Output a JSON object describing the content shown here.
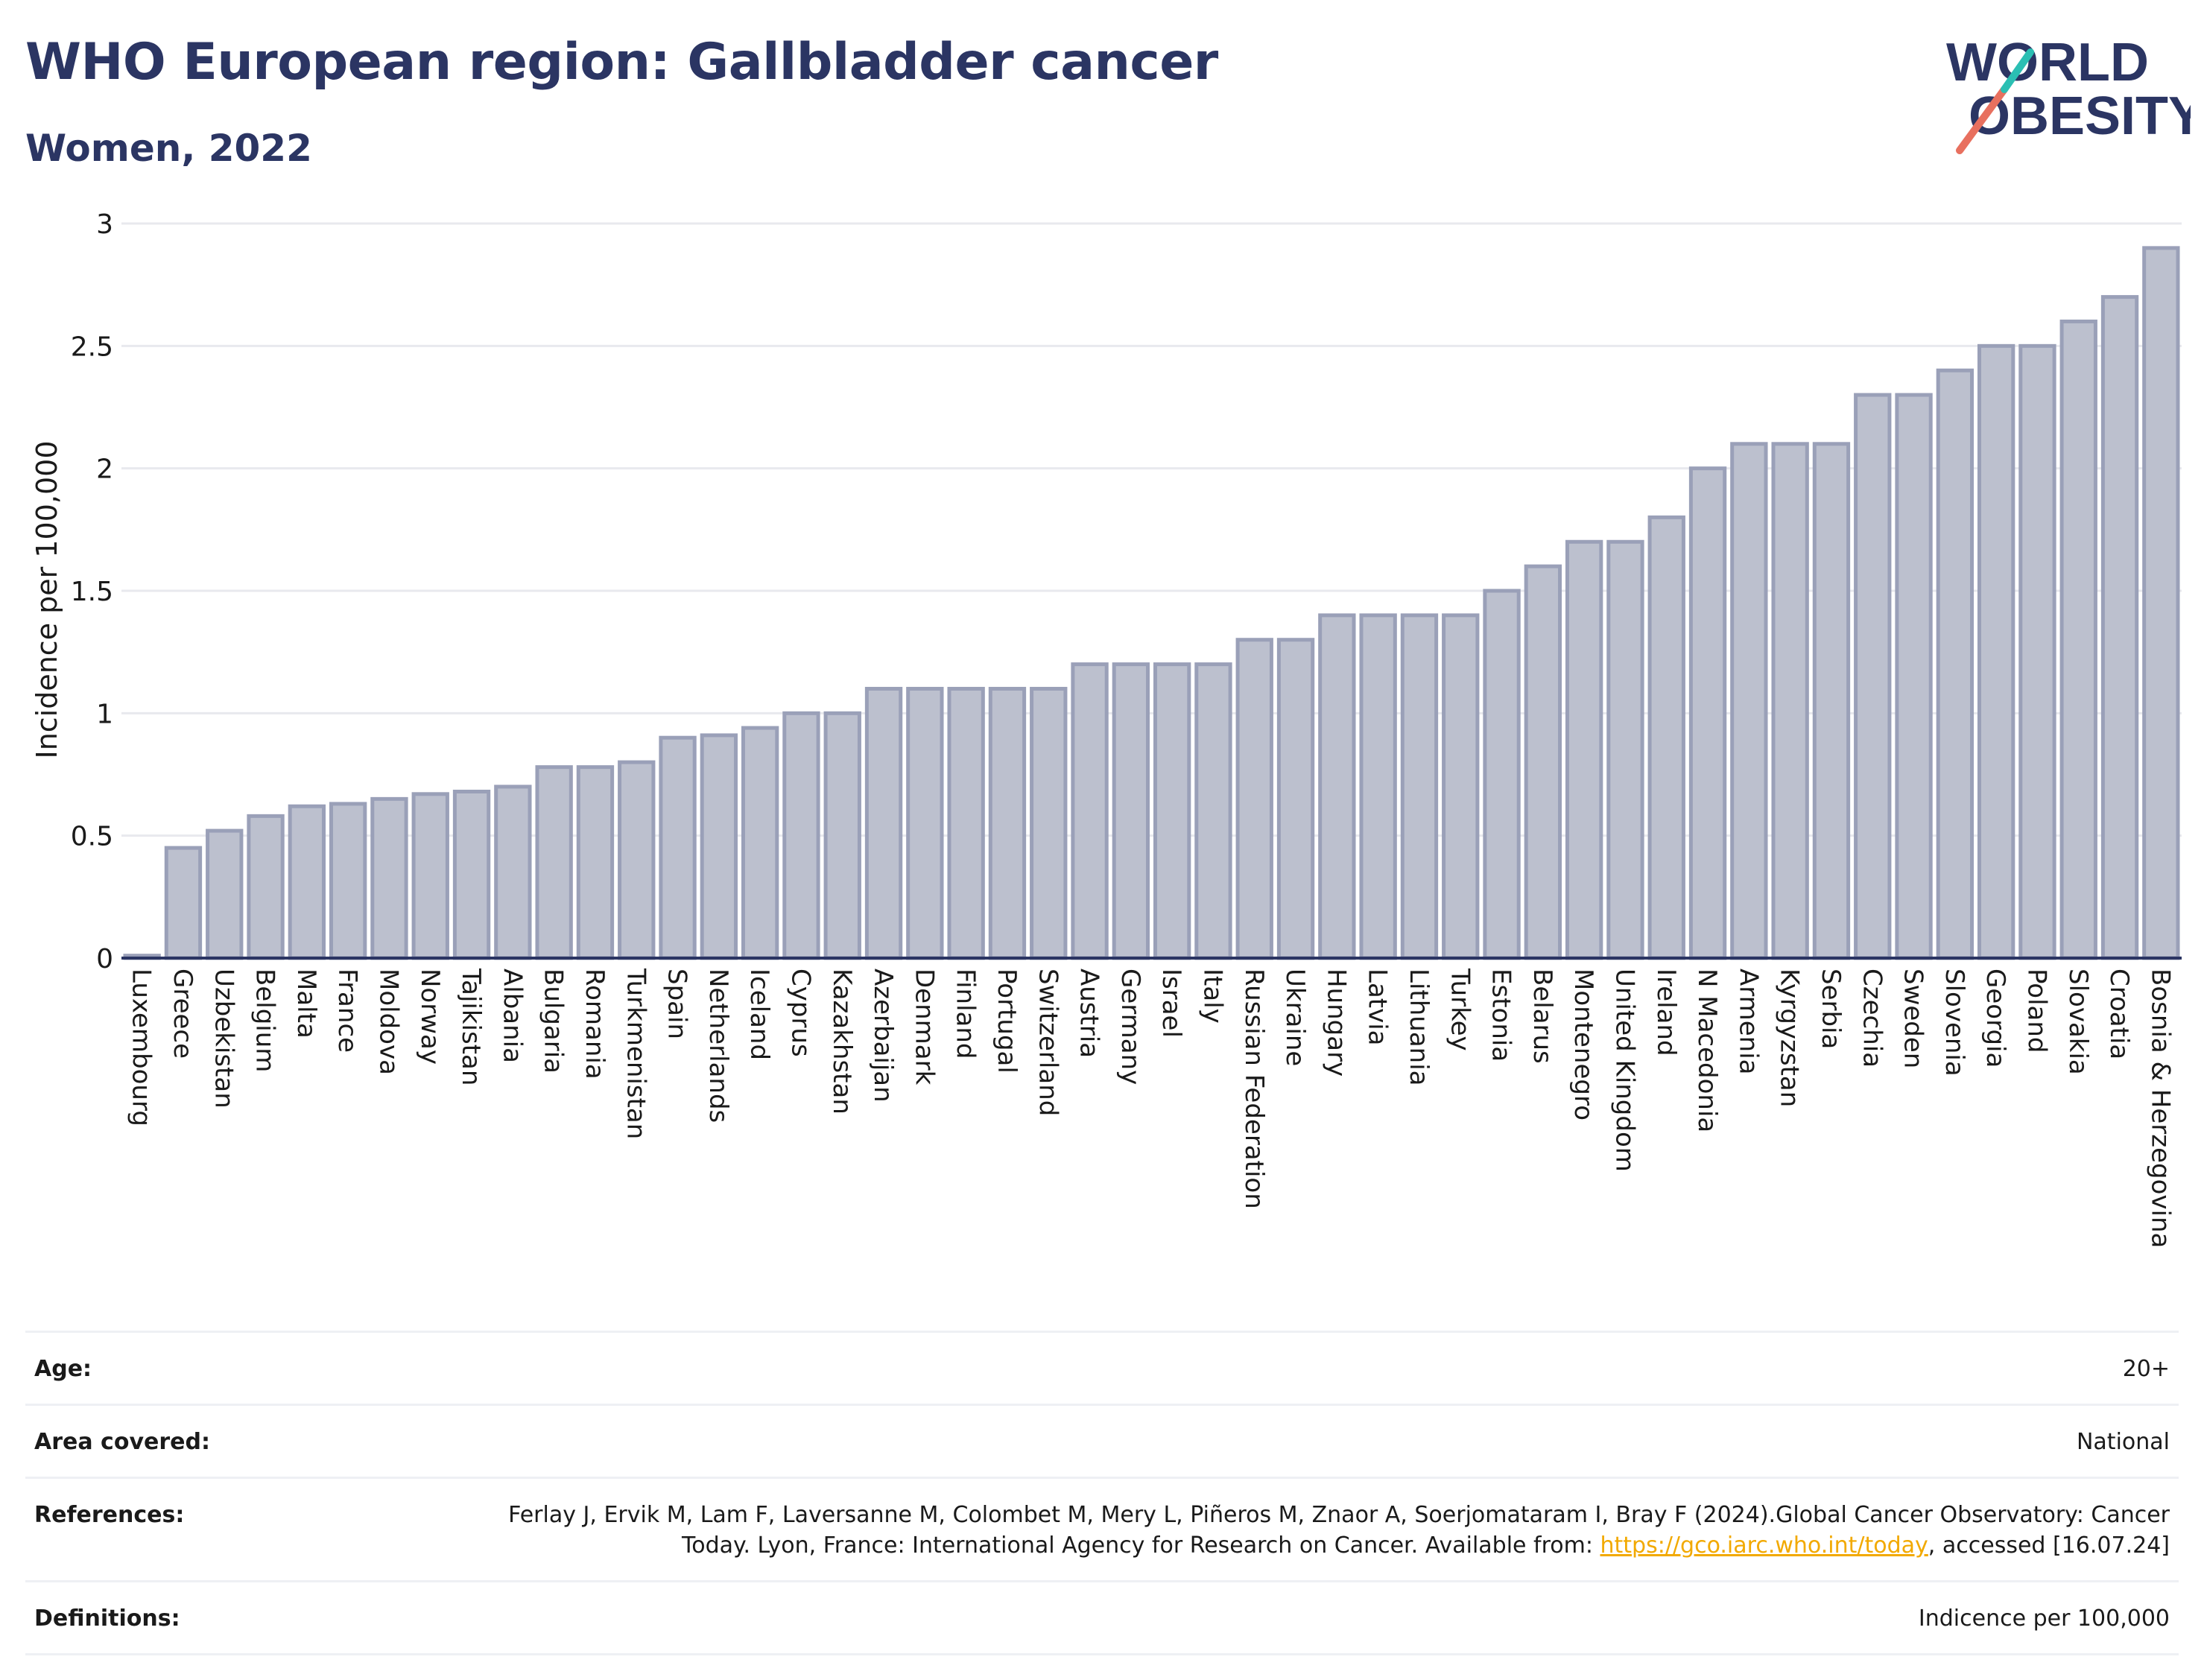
{
  "header": {
    "title": "WHO European region: Gallbladder cancer",
    "subtitle": "Women, 2022"
  },
  "logo": {
    "line1": "WORLD",
    "line2": "OBESITY",
    "text_color": "#2b3563",
    "slash_colors": [
      "#e8705f",
      "#2bbfb3"
    ]
  },
  "colors": {
    "bar_fill": "#bcc0ce",
    "bar_stroke": "#9aa0b8",
    "grid": "#e8e9ee",
    "baseline": "#2b3563",
    "link": "#f2a900"
  },
  "chart_data": {
    "type": "bar",
    "ylabel": "Incidence per 100,000",
    "ylim": [
      0,
      3
    ],
    "yticks": [
      0,
      0.5,
      1,
      1.5,
      2,
      2.5,
      3
    ],
    "grid": true,
    "categories": [
      "Luxembourg",
      "Greece",
      "Uzbekistan",
      "Belgium",
      "Malta",
      "France",
      "Moldova",
      "Norway",
      "Tajikistan",
      "Albania",
      "Bulgaria",
      "Romania",
      "Turkmenistan",
      "Spain",
      "Netherlands",
      "Iceland",
      "Cyprus",
      "Kazakhstan",
      "Azerbaijan",
      "Denmark",
      "Finland",
      "Portugal",
      "Switzerland",
      "Austria",
      "Germany",
      "Israel",
      "Italy",
      "Russian Federation",
      "Ukraine",
      "Hungary",
      "Latvia",
      "Lithuania",
      "Turkey",
      "Estonia",
      "Belarus",
      "Montenegro",
      "United Kingdom",
      "Ireland",
      "N Macedonia",
      "Armenia",
      "Kyrgyzstan",
      "Serbia",
      "Czechia",
      "Sweden",
      "Slovenia",
      "Georgia",
      "Poland",
      "Slovakia",
      "Croatia",
      "Bosnia & Herzegovina"
    ],
    "values": [
      0.01,
      0.45,
      0.52,
      0.58,
      0.62,
      0.63,
      0.65,
      0.67,
      0.68,
      0.7,
      0.78,
      0.78,
      0.8,
      0.9,
      0.91,
      0.94,
      1.0,
      1.0,
      1.1,
      1.1,
      1.1,
      1.1,
      1.1,
      1.2,
      1.2,
      1.2,
      1.2,
      1.3,
      1.3,
      1.4,
      1.4,
      1.4,
      1.4,
      1.5,
      1.6,
      1.7,
      1.7,
      1.8,
      2.0,
      2.1,
      2.1,
      2.1,
      2.3,
      2.3,
      2.4,
      2.5,
      2.5,
      2.6,
      2.7,
      2.9
    ]
  },
  "info": {
    "age_label": "Age:",
    "age_value": "20+",
    "area_label": "Area covered:",
    "area_value": "National",
    "references_label": "References:",
    "references_text_1": "Ferlay J, Ervik M, Lam F, Laversanne M, Colombet M, Mery L, Piñeros M, Znaor A, Soerjomataram I, Bray F (2024).Global Cancer Observatory: Cancer Today. Lyon, France: International Agency for Research on Cancer. Available from: ",
    "references_link": "https://gco.iarc.who.int/today",
    "references_text_2": ", accessed [16.07.24]",
    "definitions_label": "Definitions:",
    "definitions_value": "Indicence per 100,000"
  }
}
